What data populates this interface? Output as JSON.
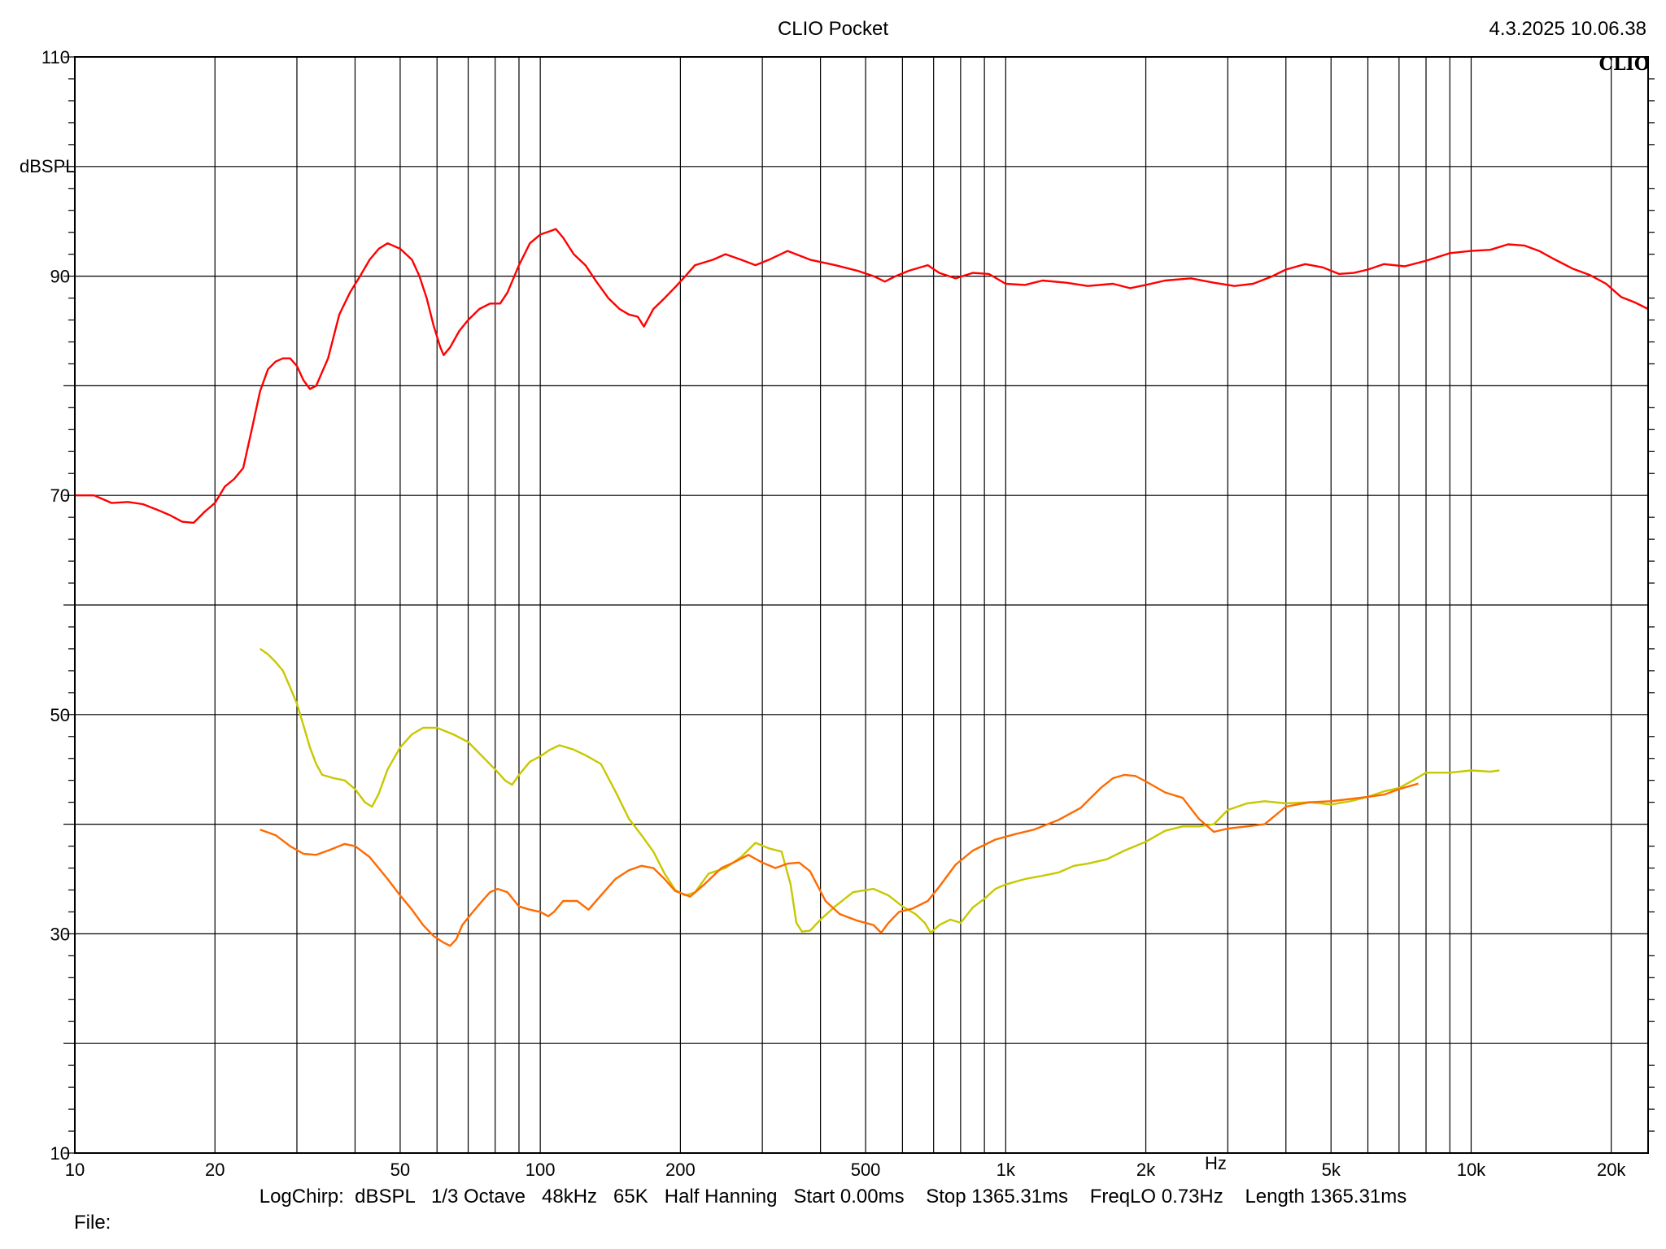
{
  "header": {
    "app_title": "CLIO Pocket",
    "timestamp": "4.3.2025 10.06.38",
    "logo_text": "CLIO"
  },
  "footer": {
    "settings": "LogChirp:  dBSPL   1/3 Octave   48kHz   65K   Half Hanning   Start 0.00ms    Stop 1365.31ms    FreqLO 0.73Hz    Length 1365.31ms",
    "file_label": "File:"
  },
  "chart_data": {
    "type": "line",
    "title": "",
    "xlabel": "Hz",
    "ylabel": "dBSPL",
    "xscale": "log",
    "xlim": [
      10,
      24000
    ],
    "ylim": [
      10,
      110
    ],
    "grid": true,
    "y_ticks": [
      10,
      30,
      50,
      70,
      90,
      110
    ],
    "x_ticks": [
      {
        "value": 10,
        "label": "10"
      },
      {
        "value": 20,
        "label": "20"
      },
      {
        "value": 50,
        "label": "50"
      },
      {
        "value": 100,
        "label": "100"
      },
      {
        "value": 200,
        "label": "200"
      },
      {
        "value": 500,
        "label": "500"
      },
      {
        "value": 1000,
        "label": "1k"
      },
      {
        "value": 2000,
        "label": "2k"
      },
      {
        "value": 5000,
        "label": "5k"
      },
      {
        "value": 10000,
        "label": "10k"
      },
      {
        "value": 20000,
        "label": "20k"
      }
    ],
    "series": [
      {
        "color": "#ff0000",
        "points": [
          [
            10,
            70.0
          ],
          [
            11,
            70.0
          ],
          [
            12,
            69.3
          ],
          [
            13,
            69.4
          ],
          [
            14,
            69.2
          ],
          [
            15,
            68.7
          ],
          [
            16,
            68.2
          ],
          [
            17,
            67.6
          ],
          [
            18,
            67.5
          ],
          [
            19,
            68.5
          ],
          [
            20,
            69.3
          ],
          [
            21,
            70.8
          ],
          [
            22,
            71.5
          ],
          [
            23,
            72.5
          ],
          [
            24,
            76
          ],
          [
            25,
            79.5
          ],
          [
            26,
            81.5
          ],
          [
            27,
            82.2
          ],
          [
            28,
            82.5
          ],
          [
            29,
            82.5
          ],
          [
            30,
            81.8
          ],
          [
            31,
            80.5
          ],
          [
            32,
            79.7
          ],
          [
            33,
            80.0
          ],
          [
            35,
            82.5
          ],
          [
            37,
            86.5
          ],
          [
            39,
            88.5
          ],
          [
            41,
            90
          ],
          [
            43,
            91.5
          ],
          [
            45,
            92.5
          ],
          [
            47,
            93.0
          ],
          [
            50,
            92.5
          ],
          [
            53,
            91.5
          ],
          [
            55,
            90
          ],
          [
            57,
            88
          ],
          [
            59,
            85.5
          ],
          [
            61,
            83.5
          ],
          [
            62,
            82.8
          ],
          [
            64,
            83.5
          ],
          [
            67,
            85
          ],
          [
            70,
            86
          ],
          [
            74,
            87
          ],
          [
            78,
            87.5
          ],
          [
            82,
            87.5
          ],
          [
            85,
            88.5
          ],
          [
            90,
            91
          ],
          [
            95,
            93
          ],
          [
            100,
            93.8
          ],
          [
            105,
            94.1
          ],
          [
            108,
            94.3
          ],
          [
            112,
            93.5
          ],
          [
            118,
            92.0
          ],
          [
            125,
            91.0
          ],
          [
            132,
            89.5
          ],
          [
            140,
            88
          ],
          [
            148,
            87
          ],
          [
            155,
            86.5
          ],
          [
            162,
            86.3
          ],
          [
            167,
            85.4
          ],
          [
            175,
            87
          ],
          [
            185,
            88
          ],
          [
            195,
            89
          ],
          [
            205,
            90
          ],
          [
            215,
            91
          ],
          [
            235,
            91.5
          ],
          [
            250,
            92.0
          ],
          [
            270,
            91.5
          ],
          [
            290,
            91
          ],
          [
            310,
            91.5
          ],
          [
            340,
            92.3
          ],
          [
            380,
            91.5
          ],
          [
            430,
            91
          ],
          [
            480,
            90.5
          ],
          [
            520,
            90.0
          ],
          [
            550,
            89.5
          ],
          [
            580,
            90
          ],
          [
            620,
            90.5
          ],
          [
            680,
            91.0
          ],
          [
            720,
            90.3
          ],
          [
            780,
            89.8
          ],
          [
            850,
            90.3
          ],
          [
            920,
            90.2
          ],
          [
            1000,
            89.3
          ],
          [
            1100,
            89.2
          ],
          [
            1200,
            89.6
          ],
          [
            1350,
            89.4
          ],
          [
            1500,
            89.1
          ],
          [
            1700,
            89.3
          ],
          [
            1850,
            88.9
          ],
          [
            2000,
            89.2
          ],
          [
            2200,
            89.6
          ],
          [
            2500,
            89.8
          ],
          [
            2800,
            89.4
          ],
          [
            3100,
            89.1
          ],
          [
            3400,
            89.3
          ],
          [
            3700,
            89.9
          ],
          [
            4000,
            90.6
          ],
          [
            4400,
            91.1
          ],
          [
            4800,
            90.8
          ],
          [
            5200,
            90.2
          ],
          [
            5600,
            90.3
          ],
          [
            6000,
            90.6
          ],
          [
            6500,
            91.1
          ],
          [
            7200,
            90.9
          ],
          [
            8000,
            91.4
          ],
          [
            9000,
            92.1
          ],
          [
            10000,
            92.3
          ],
          [
            11000,
            92.4
          ],
          [
            12000,
            92.9
          ],
          [
            13000,
            92.8
          ],
          [
            14000,
            92.3
          ],
          [
            15000,
            91.6
          ],
          [
            16500,
            90.7
          ],
          [
            18000,
            90.1
          ],
          [
            19500,
            89.3
          ],
          [
            21000,
            88.1
          ],
          [
            22500,
            87.6
          ],
          [
            24000,
            87.0
          ]
        ]
      },
      {
        "color": "#c8c800",
        "points": [
          [
            25,
            56.0
          ],
          [
            26,
            55.5
          ],
          [
            27,
            54.8
          ],
          [
            28,
            54.0
          ],
          [
            29,
            52.5
          ],
          [
            30,
            51.0
          ],
          [
            31,
            49.0
          ],
          [
            32,
            47.0
          ],
          [
            33,
            45.5
          ],
          [
            34,
            44.5
          ],
          [
            36,
            44.2
          ],
          [
            38,
            44
          ],
          [
            40,
            43.2
          ],
          [
            42,
            42.0
          ],
          [
            43.5,
            41.6
          ],
          [
            45,
            42.8
          ],
          [
            47,
            45
          ],
          [
            50,
            47
          ],
          [
            53,
            48.2
          ],
          [
            56,
            48.8
          ],
          [
            60,
            48.8
          ],
          [
            65,
            48.2
          ],
          [
            70,
            47.5
          ],
          [
            75,
            46.2
          ],
          [
            80,
            45
          ],
          [
            84,
            44
          ],
          [
            87,
            43.6
          ],
          [
            90,
            44.5
          ],
          [
            95,
            45.7
          ],
          [
            100,
            46.2
          ],
          [
            105,
            46.8
          ],
          [
            110,
            47.2
          ],
          [
            118,
            46.8
          ],
          [
            125,
            46.3
          ],
          [
            135,
            45.5
          ],
          [
            145,
            43
          ],
          [
            155,
            40.5
          ],
          [
            165,
            39
          ],
          [
            175,
            37.5
          ],
          [
            185,
            35.5
          ],
          [
            195,
            34
          ],
          [
            205,
            33.5
          ],
          [
            215,
            33.8
          ],
          [
            230,
            35.5
          ],
          [
            250,
            36
          ],
          [
            270,
            37
          ],
          [
            290,
            38.3
          ],
          [
            310,
            37.8
          ],
          [
            330,
            37.5
          ],
          [
            345,
            34.5
          ],
          [
            355,
            31
          ],
          [
            365,
            30.2
          ],
          [
            380,
            30.3
          ],
          [
            400,
            31.3
          ],
          [
            430,
            32.5
          ],
          [
            470,
            33.8
          ],
          [
            520,
            34.1
          ],
          [
            560,
            33.5
          ],
          [
            600,
            32.5
          ],
          [
            640,
            31.8
          ],
          [
            670,
            31
          ],
          [
            690,
            30.1
          ],
          [
            720,
            30.8
          ],
          [
            760,
            31.3
          ],
          [
            800,
            31.0
          ],
          [
            850,
            32.4
          ],
          [
            900,
            33.2
          ],
          [
            950,
            34.1
          ],
          [
            1000,
            34.5
          ],
          [
            1100,
            35.0
          ],
          [
            1200,
            35.3
          ],
          [
            1300,
            35.6
          ],
          [
            1400,
            36.2
          ],
          [
            1500,
            36.4
          ],
          [
            1650,
            36.8
          ],
          [
            1800,
            37.6
          ],
          [
            2000,
            38.4
          ],
          [
            2200,
            39.4
          ],
          [
            2400,
            39.8
          ],
          [
            2600,
            39.8
          ],
          [
            2800,
            40.0
          ],
          [
            3000,
            41.3
          ],
          [
            3300,
            41.9
          ],
          [
            3600,
            42.1
          ],
          [
            4000,
            41.9
          ],
          [
            4500,
            42.0
          ],
          [
            5000,
            41.8
          ],
          [
            5500,
            42.1
          ],
          [
            6000,
            42.5
          ],
          [
            6500,
            43.0
          ],
          [
            7000,
            43.3
          ],
          [
            7500,
            44.0
          ],
          [
            8000,
            44.7
          ],
          [
            9000,
            44.7
          ],
          [
            10000,
            44.9
          ],
          [
            11000,
            44.8
          ],
          [
            11500,
            44.9
          ]
        ]
      },
      {
        "color": "#ff6a00",
        "points": [
          [
            25,
            39.5
          ],
          [
            27,
            39.0
          ],
          [
            29,
            38.0
          ],
          [
            31,
            37.3
          ],
          [
            33,
            37.2
          ],
          [
            35,
            37.6
          ],
          [
            38,
            38.2
          ],
          [
            40,
            38.0
          ],
          [
            43,
            37.0
          ],
          [
            47,
            35.0
          ],
          [
            50,
            33.5
          ],
          [
            53,
            32.2
          ],
          [
            56,
            30.8
          ],
          [
            59,
            29.8
          ],
          [
            62,
            29.2
          ],
          [
            64,
            28.9
          ],
          [
            66,
            29.5
          ],
          [
            68,
            30.8
          ],
          [
            71,
            31.8
          ],
          [
            75,
            33
          ],
          [
            78,
            33.8
          ],
          [
            81,
            34.1
          ],
          [
            85,
            33.8
          ],
          [
            90,
            32.5
          ],
          [
            95,
            32.2
          ],
          [
            100,
            32.0
          ],
          [
            104,
            31.6
          ],
          [
            107,
            32.0
          ],
          [
            112,
            33.0
          ],
          [
            120,
            33.0
          ],
          [
            127,
            32.2
          ],
          [
            135,
            33.5
          ],
          [
            145,
            35
          ],
          [
            155,
            35.8
          ],
          [
            165,
            36.2
          ],
          [
            175,
            36.0
          ],
          [
            185,
            35.0
          ],
          [
            195,
            33.9
          ],
          [
            210,
            33.4
          ],
          [
            225,
            34.5
          ],
          [
            245,
            36
          ],
          [
            260,
            36.5
          ],
          [
            280,
            37.2
          ],
          [
            300,
            36.5
          ],
          [
            320,
            36.0
          ],
          [
            340,
            36.4
          ],
          [
            360,
            36.5
          ],
          [
            380,
            35.7
          ],
          [
            410,
            33
          ],
          [
            440,
            31.8
          ],
          [
            480,
            31.2
          ],
          [
            520,
            30.8
          ],
          [
            540,
            30.1
          ],
          [
            560,
            31
          ],
          [
            590,
            32.0
          ],
          [
            630,
            32.3
          ],
          [
            680,
            33.0
          ],
          [
            720,
            34.3
          ],
          [
            780,
            36.3
          ],
          [
            850,
            37.6
          ],
          [
            950,
            38.6
          ],
          [
            1050,
            39.1
          ],
          [
            1150,
            39.5
          ],
          [
            1300,
            40.4
          ],
          [
            1450,
            41.5
          ],
          [
            1600,
            43.3
          ],
          [
            1700,
            44.2
          ],
          [
            1800,
            44.5
          ],
          [
            1900,
            44.4
          ],
          [
            2000,
            43.9
          ],
          [
            2200,
            42.9
          ],
          [
            2400,
            42.4
          ],
          [
            2600,
            40.5
          ],
          [
            2800,
            39.3
          ],
          [
            3000,
            39.6
          ],
          [
            3300,
            39.8
          ],
          [
            3600,
            40.0
          ],
          [
            4000,
            41.6
          ],
          [
            4500,
            42.0
          ],
          [
            5000,
            42.1
          ],
          [
            5500,
            42.3
          ],
          [
            6000,
            42.5
          ],
          [
            6500,
            42.7
          ],
          [
            7000,
            43.2
          ],
          [
            7700,
            43.7
          ]
        ]
      }
    ]
  }
}
